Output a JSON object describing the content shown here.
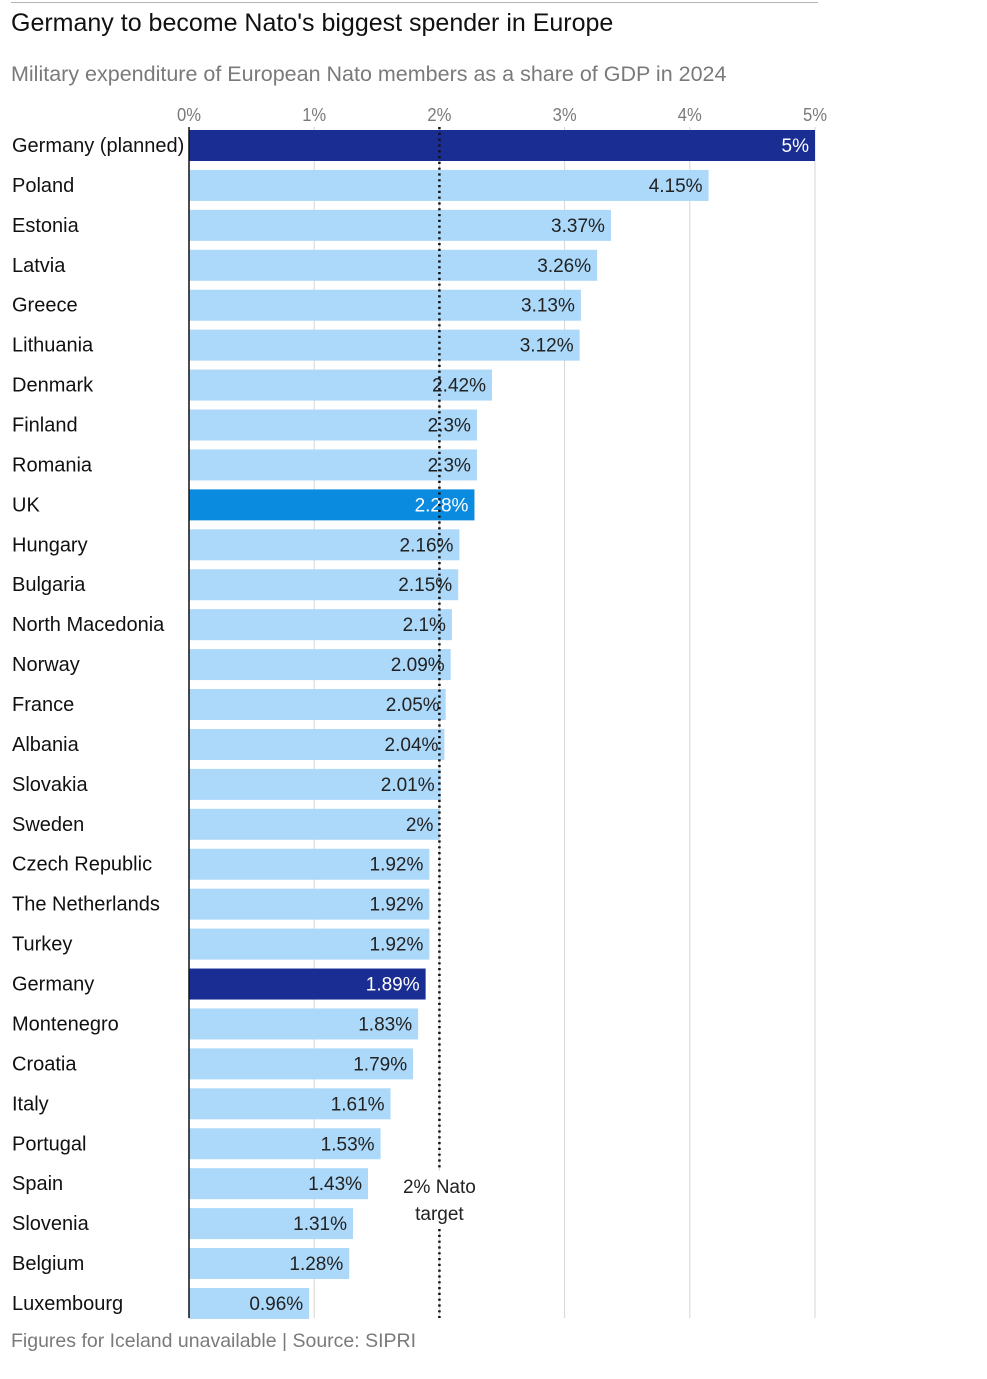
{
  "header": {
    "title": "Germany to become Nato's biggest spender in Europe",
    "subtitle": "Military expenditure of European Nato members as a share of GDP in 2024"
  },
  "footer": {
    "note": "Figures for Iceland unavailable | Source: SIPRI"
  },
  "colors": {
    "default_bar": "#acd8f9",
    "highlight_germany": "#1a2d93",
    "highlight_uk": "#0b8be0",
    "gridline": "#d5d5d5",
    "axis_line": "#111111"
  },
  "chart_data": {
    "type": "bar",
    "orientation": "horizontal",
    "xlim": [
      0,
      5
    ],
    "x_ticks": [
      "0%",
      "1%",
      "2%",
      "3%",
      "4%",
      "5%"
    ],
    "grid": true,
    "categories": [
      "Germany (planned)",
      "Poland",
      "Estonia",
      "Latvia",
      "Greece",
      "Lithuania",
      "Denmark",
      "Finland",
      "Romania",
      "UK",
      "Hungary",
      "Bulgaria",
      "North Macedonia",
      "Norway",
      "France",
      "Albania",
      "Slovakia",
      "Sweden",
      "Czech Republic",
      "The Netherlands",
      "Turkey",
      "Germany",
      "Montenegro",
      "Croatia",
      "Italy",
      "Portugal",
      "Spain",
      "Slovenia",
      "Belgium",
      "Luxembourg"
    ],
    "values": [
      5,
      4.15,
      3.37,
      3.26,
      3.13,
      3.12,
      2.42,
      2.3,
      2.3,
      2.28,
      2.16,
      2.15,
      2.1,
      2.09,
      2.05,
      2.04,
      2.01,
      2,
      1.92,
      1.92,
      1.92,
      1.89,
      1.83,
      1.79,
      1.61,
      1.53,
      1.43,
      1.31,
      1.28,
      0.96
    ],
    "value_labels": [
      "5%",
      "4.15%",
      "3.37%",
      "3.26%",
      "3.13%",
      "3.12%",
      "2.42%",
      "2.3%",
      "2.3%",
      "2.28%",
      "2.16%",
      "2.15%",
      "2.1%",
      "2.09%",
      "2.05%",
      "2.04%",
      "2.01%",
      "2%",
      "1.92%",
      "1.92%",
      "1.92%",
      "1.89%",
      "1.83%",
      "1.79%",
      "1.61%",
      "1.53%",
      "1.43%",
      "1.31%",
      "1.28%",
      "0.96%"
    ],
    "highlights": {
      "Germany (planned)": "highlight_germany",
      "Germany": "highlight_germany",
      "UK": "highlight_uk"
    },
    "reference_line": {
      "value": 2,
      "style": "dotted",
      "label_lines": [
        "2% Nato",
        "target"
      ]
    }
  }
}
